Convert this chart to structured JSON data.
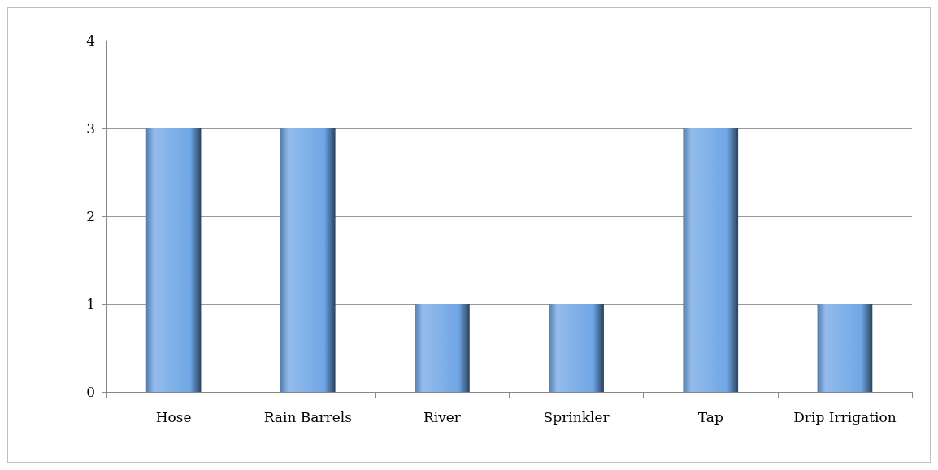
{
  "chart_data": {
    "type": "bar",
    "categories": [
      "Hose",
      "Rain Barrels",
      "River",
      "Sprinkler",
      "Tap",
      "Drip Irrigation"
    ],
    "values": [
      3,
      3,
      1,
      1,
      3,
      1
    ],
    "color": "#6fa6e6",
    "ylim": [
      0,
      4
    ],
    "yticks": [
      0,
      1,
      2,
      3,
      4
    ],
    "grid": "y"
  }
}
